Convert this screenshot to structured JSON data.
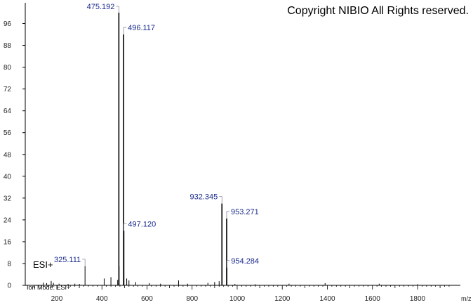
{
  "copyright": "Copyright NIBIO All Rights reserved.",
  "ion_mode_label": "Ion Mode: ESI+",
  "esi_label": "ESI+",
  "colors": {
    "axis": "#000000",
    "peak": "#000000",
    "label": "#1a2a8c",
    "leader": "#8a8aa8"
  },
  "chart_data": {
    "type": "bar",
    "title": "",
    "xlabel": "m/z",
    "ylabel": "",
    "xlim": [
      60,
      1990
    ],
    "ylim": [
      0,
      100
    ],
    "x_ticks": [
      200,
      400,
      600,
      800,
      1000,
      1200,
      1400,
      1600,
      1800
    ],
    "y_ticks": [
      0,
      8,
      16,
      24,
      32,
      40,
      48,
      56,
      64,
      72,
      80,
      88,
      96
    ],
    "grid": false,
    "peaks": [
      {
        "mz": 140,
        "intensity": 1.0
      },
      {
        "mz": 155,
        "intensity": 0.8
      },
      {
        "mz": 175,
        "intensity": 1.6
      },
      {
        "mz": 185,
        "intensity": 0.9
      },
      {
        "mz": 210,
        "intensity": 0.6
      },
      {
        "mz": 250,
        "intensity": 0.5
      },
      {
        "mz": 280,
        "intensity": 0.6
      },
      {
        "mz": 300,
        "intensity": 0.5
      },
      {
        "mz": 325.111,
        "intensity": 7.0
      },
      {
        "mz": 410,
        "intensity": 2.5
      },
      {
        "mz": 440,
        "intensity": 3.0
      },
      {
        "mz": 470,
        "intensity": 2.0
      },
      {
        "mz": 475.192,
        "intensity": 100.0
      },
      {
        "mz": 476.195,
        "intensity": 7.0
      },
      {
        "mz": 496.117,
        "intensity": 92.0
      },
      {
        "mz": 497.12,
        "intensity": 20.0
      },
      {
        "mz": 510,
        "intensity": 2.5
      },
      {
        "mz": 520,
        "intensity": 1.8
      },
      {
        "mz": 550,
        "intensity": 1.2
      },
      {
        "mz": 610,
        "intensity": 0.8
      },
      {
        "mz": 660,
        "intensity": 0.6
      },
      {
        "mz": 740,
        "intensity": 1.8
      },
      {
        "mz": 780,
        "intensity": 0.6
      },
      {
        "mz": 870,
        "intensity": 0.9
      },
      {
        "mz": 900,
        "intensity": 1.2
      },
      {
        "mz": 920,
        "intensity": 1.5
      },
      {
        "mz": 932.345,
        "intensity": 30.0
      },
      {
        "mz": 933.35,
        "intensity": 6.0
      },
      {
        "mz": 953.271,
        "intensity": 24.5
      },
      {
        "mz": 954.284,
        "intensity": 6.5
      },
      {
        "mz": 990,
        "intensity": 0.5
      },
      {
        "mz": 1080,
        "intensity": 0.4
      },
      {
        "mz": 1230,
        "intensity": 0.6
      },
      {
        "mz": 1390,
        "intensity": 0.8
      },
      {
        "mz": 1630,
        "intensity": 0.6
      },
      {
        "mz": 1800,
        "intensity": 0.4
      }
    ],
    "annotations": [
      {
        "text": "325.111",
        "mz": 325.111,
        "intensity": 7.0,
        "side": "left"
      },
      {
        "text": "475.192",
        "mz": 475.192,
        "intensity": 100.0,
        "side": "left"
      },
      {
        "text": "496.117",
        "mz": 496.117,
        "intensity": 92.0,
        "side": "right"
      },
      {
        "text": "497.120",
        "mz": 497.12,
        "intensity": 20.0,
        "side": "right"
      },
      {
        "text": "932.345",
        "mz": 932.345,
        "intensity": 30.0,
        "side": "left"
      },
      {
        "text": "953.271",
        "mz": 953.271,
        "intensity": 24.5,
        "side": "right"
      },
      {
        "text": "954.284",
        "mz": 954.284,
        "intensity": 6.5,
        "side": "right"
      }
    ]
  }
}
